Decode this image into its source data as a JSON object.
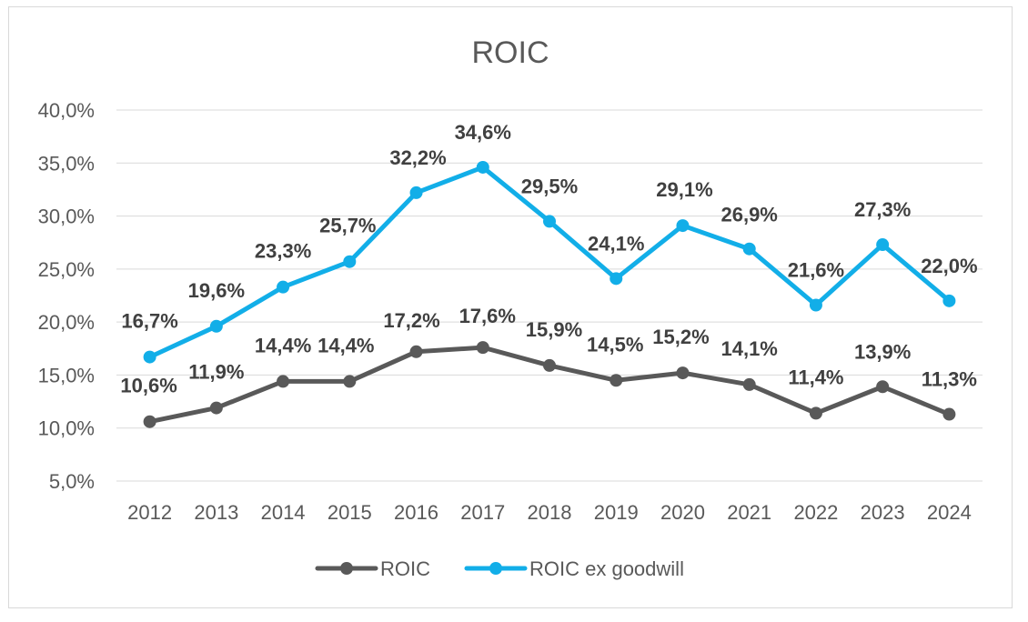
{
  "chart_data": {
    "type": "line",
    "title": "ROIC",
    "xlabel": "",
    "ylabel": "",
    "categories": [
      "2012",
      "2013",
      "2014",
      "2015",
      "2016",
      "2017",
      "2018",
      "2019",
      "2020",
      "2021",
      "2022",
      "2023",
      "2024"
    ],
    "ylim": [
      5,
      40
    ],
    "yticks": [
      5,
      10,
      15,
      20,
      25,
      30,
      35,
      40
    ],
    "ytick_labels": [
      "5,0%",
      "10,0%",
      "15,0%",
      "20,0%",
      "25,0%",
      "30,0%",
      "35,0%",
      "40,0%"
    ],
    "grid": true,
    "legend_position": "bottom",
    "series": [
      {
        "name": "ROIC",
        "color": "#595959",
        "values": [
          10.6,
          11.9,
          14.4,
          14.4,
          17.2,
          17.6,
          15.9,
          14.5,
          15.2,
          14.1,
          11.4,
          13.9,
          11.3
        ],
        "labels": [
          "10,6%",
          "11,9%",
          "14,4%",
          "14,4%",
          "17,2%",
          "17,6%",
          "15,9%",
          "14,5%",
          "15,2%",
          "14,1%",
          "11,4%",
          "13,9%",
          "11,3%"
        ]
      },
      {
        "name": "ROIC ex goodwill",
        "color": "#12aee8",
        "values": [
          16.7,
          19.6,
          23.3,
          25.7,
          32.2,
          34.6,
          29.5,
          24.1,
          29.1,
          26.9,
          21.6,
          27.3,
          22.0
        ],
        "labels": [
          "16,7%",
          "19,6%",
          "23,3%",
          "25,7%",
          "32,2%",
          "34,6%",
          "29,5%",
          "24,1%",
          "29,1%",
          "26,9%",
          "21,6%",
          "27,3%",
          "22,0%"
        ]
      }
    ]
  }
}
